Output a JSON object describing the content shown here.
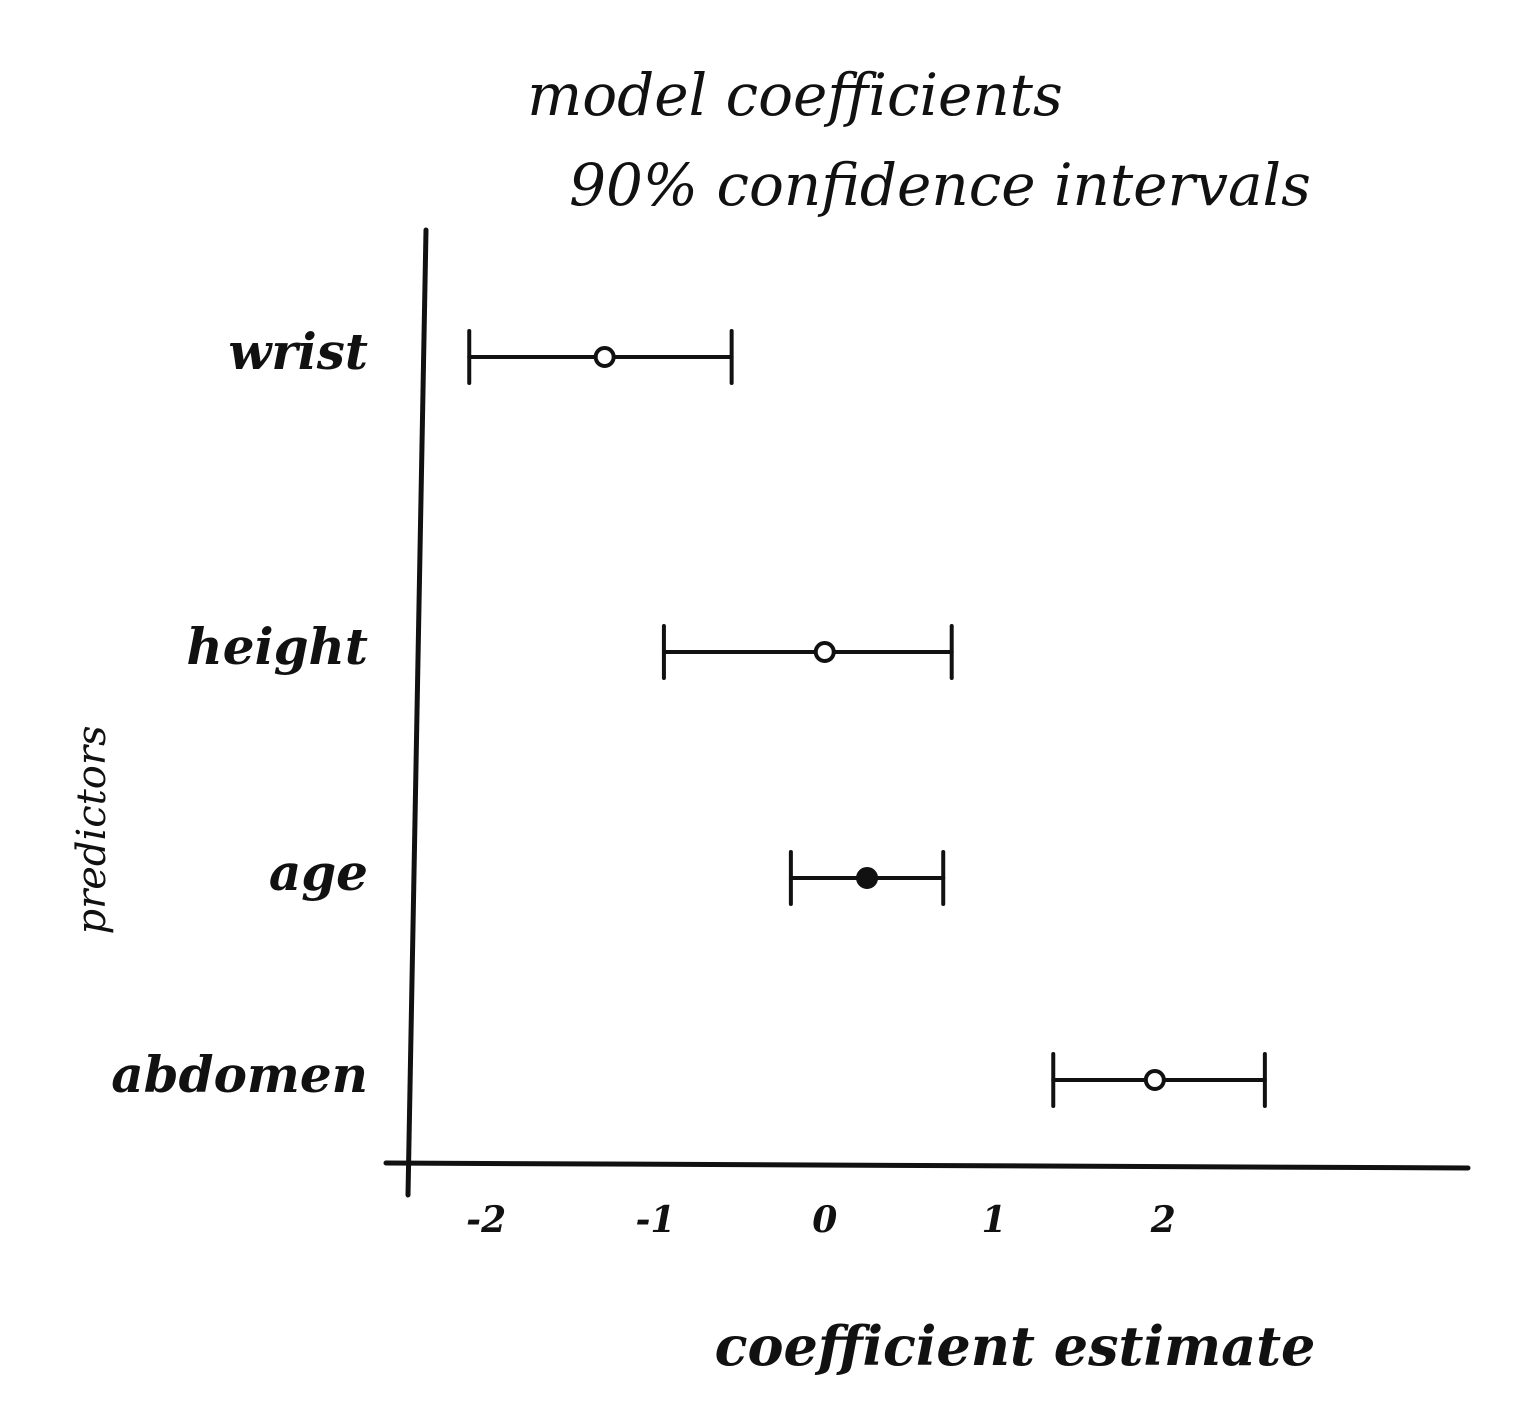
{
  "chart_data": {
    "type": "interval",
    "title": [
      "model coefficients",
      "90% confidence intervals"
    ],
    "xlabel": "coefficient estimate",
    "ylabel": "predictors",
    "xticks": [
      -2,
      -1,
      0,
      1,
      2
    ],
    "xtick_labels": [
      "-2",
      "-1",
      "0",
      "1",
      "2"
    ],
    "xlim": [
      -2.45,
      3.8
    ],
    "grid": false,
    "legend": "none",
    "categories": [
      "wrist",
      "height",
      "age",
      "abdomen"
    ],
    "points": [
      {
        "label": "wrist",
        "estimate": -1.3,
        "lower": -2.1,
        "upper": -0.55,
        "marker": "open-circle"
      },
      {
        "label": "height",
        "estimate": 0.0,
        "lower": -0.95,
        "upper": 0.75,
        "marker": "open-circle"
      },
      {
        "label": "age",
        "estimate": 0.25,
        "lower": -0.2,
        "upper": 0.7,
        "marker": "filled-circle"
      },
      {
        "label": "abdomen",
        "estimate": 1.95,
        "lower": 1.35,
        "upper": 2.6,
        "marker": "open-circle"
      }
    ]
  }
}
